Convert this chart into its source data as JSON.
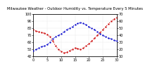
{
  "title": "Milwaukee Weather - Outdoor Humidity vs. Temperature Every 5 Minutes",
  "temp_color": "#cc0000",
  "humidity_color": "#0000cc",
  "background": "#ffffff",
  "grid_color": "#bbbbbb",
  "temp_values": [
    78,
    76,
    75,
    74,
    73,
    71,
    68,
    62,
    55,
    50,
    47,
    45,
    46,
    48,
    50,
    52,
    51,
    50,
    52,
    55,
    58,
    62,
    66,
    70,
    74,
    78,
    82,
    86,
    90,
    93,
    95
  ],
  "humidity_values": [
    18,
    20,
    22,
    24,
    25,
    27,
    30,
    35,
    38,
    40,
    42,
    45,
    48,
    50,
    52,
    55,
    57,
    58,
    57,
    55,
    52,
    50,
    48,
    45,
    42,
    40,
    38,
    36,
    35,
    33,
    32
  ],
  "ylim_temp": [
    40,
    100
  ],
  "ylim_humidity": [
    10,
    70
  ],
  "tick_fontsize": 3.5,
  "title_fontsize": 3.8,
  "linewidth": 0.8,
  "markersize": 1.2,
  "n_points": 31,
  "xtick_interval": 5,
  "ytick_interval_temp": 10,
  "ytick_interval_hum": 10
}
